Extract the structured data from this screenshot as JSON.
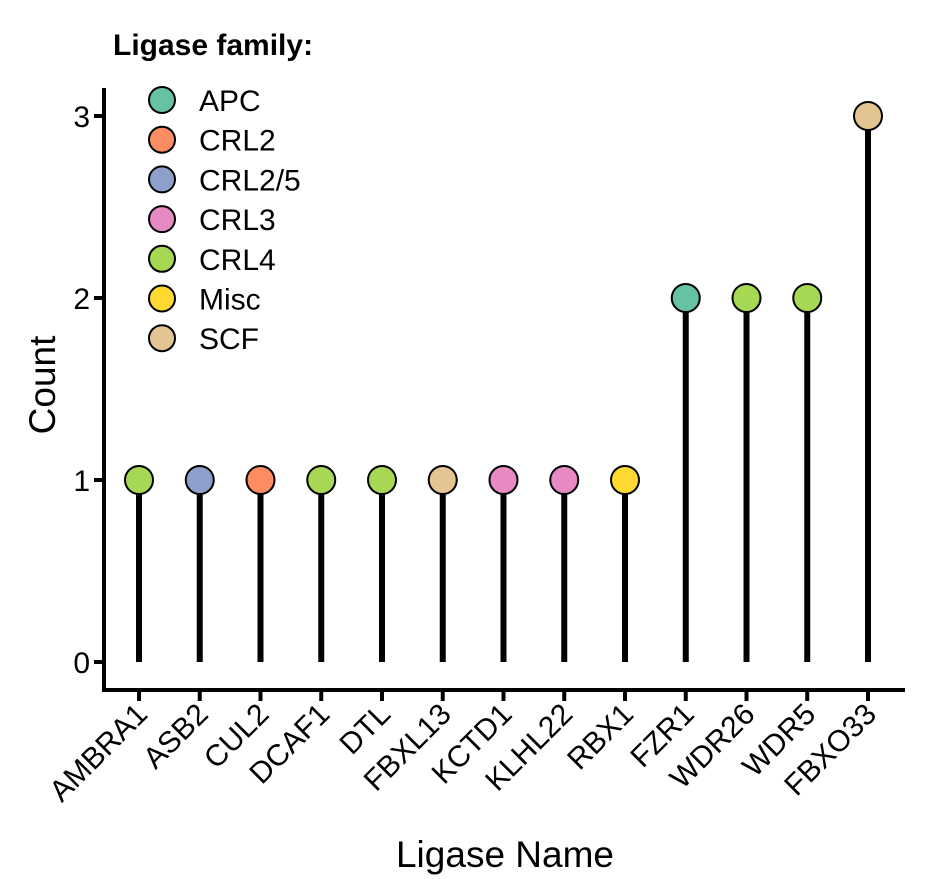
{
  "chart_data": {
    "type": "lollipop",
    "title": "",
    "xlabel": "Ligase Name",
    "ylabel": "Count",
    "ylim": [
      0,
      3
    ],
    "yticks": [
      0,
      1,
      2,
      3
    ],
    "grid": false,
    "legend": {
      "title": "Ligase family:",
      "position": "top-left",
      "entries": [
        {
          "name": "APC",
          "color": "#66c2a5"
        },
        {
          "name": "CRL2",
          "color": "#fc8d62"
        },
        {
          "name": "CRL2/5",
          "color": "#8da0cb"
        },
        {
          "name": "CRL3",
          "color": "#e78ac3"
        },
        {
          "name": "CRL4",
          "color": "#a6d854"
        },
        {
          "name": "Misc",
          "color": "#ffd92f"
        },
        {
          "name": "SCF",
          "color": "#e5c494"
        }
      ]
    },
    "categories": [
      "AMBRA1",
      "ASB2",
      "CUL2",
      "DCAF1",
      "DTL",
      "FBXL13",
      "KCTD1",
      "KLHL22",
      "RBX1",
      "FZR1",
      "WDR26",
      "WDR5",
      "FBXO33"
    ],
    "values": [
      1,
      1,
      1,
      1,
      1,
      1,
      1,
      1,
      1,
      2,
      2,
      2,
      3
    ],
    "families": [
      "CRL4",
      "CRL2/5",
      "CRL2",
      "CRL4",
      "CRL4",
      "SCF",
      "CRL3",
      "CRL3",
      "Misc",
      "APC",
      "CRL4",
      "CRL4",
      "SCF"
    ]
  }
}
